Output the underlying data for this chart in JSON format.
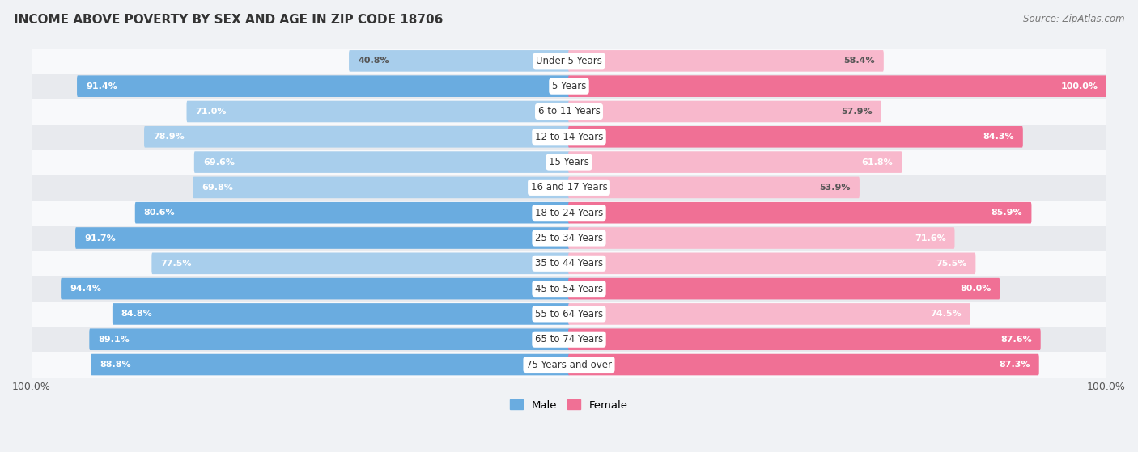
{
  "title": "INCOME ABOVE POVERTY BY SEX AND AGE IN ZIP CODE 18706",
  "source": "Source: ZipAtlas.com",
  "categories": [
    "Under 5 Years",
    "5 Years",
    "6 to 11 Years",
    "12 to 14 Years",
    "15 Years",
    "16 and 17 Years",
    "18 to 24 Years",
    "25 to 34 Years",
    "35 to 44 Years",
    "45 to 54 Years",
    "55 to 64 Years",
    "65 to 74 Years",
    "75 Years and over"
  ],
  "male": [
    40.8,
    91.4,
    71.0,
    78.9,
    69.6,
    69.8,
    80.6,
    91.7,
    77.5,
    94.4,
    84.8,
    89.1,
    88.8
  ],
  "female": [
    58.4,
    100.0,
    57.9,
    84.3,
    61.8,
    53.9,
    85.9,
    71.6,
    75.5,
    80.0,
    74.5,
    87.6,
    87.3
  ],
  "male_color_dark": "#6AACE0",
  "male_color_light": "#A8CEEC",
  "female_color_dark": "#F07095",
  "female_color_light": "#F8B8CC",
  "bg_color": "#f0f2f5",
  "row_bg_light": "#f8f9fb",
  "row_bg_dark": "#e8eaee",
  "legend_labels": [
    "Male",
    "Female"
  ],
  "x_max": 100.0
}
